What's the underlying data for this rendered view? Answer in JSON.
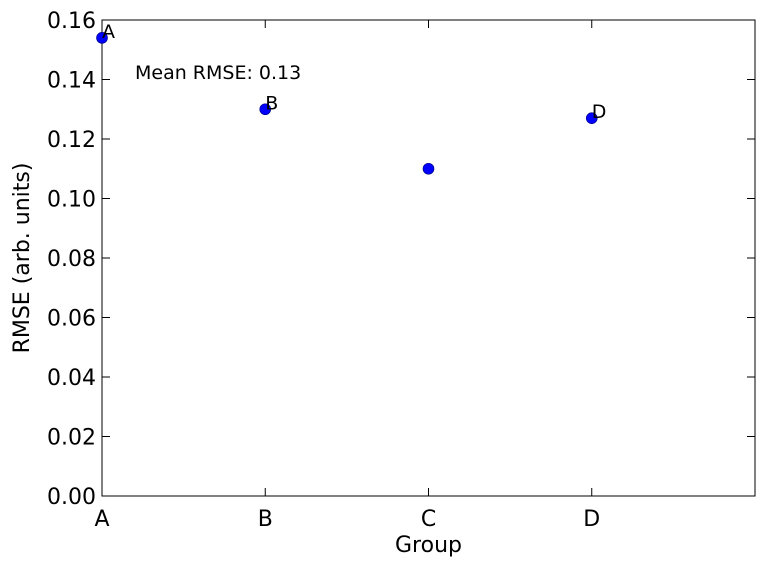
{
  "chart_data": {
    "type": "scatter",
    "title": "",
    "xlabel": "Group",
    "ylabel": "RMSE (arb. units)",
    "categories": [
      "A",
      "B",
      "C",
      "D"
    ],
    "xlim": [
      0,
      4
    ],
    "ylim": [
      0,
      0.16
    ],
    "yticks": [
      "0.00",
      "0.02",
      "0.04",
      "0.06",
      "0.08",
      "0.10",
      "0.12",
      "0.14",
      "0.16"
    ],
    "grid": false,
    "series": [
      {
        "color": "#0000ff",
        "points": [
          {
            "x": "A",
            "y": 0.154,
            "label": "A"
          },
          {
            "x": "B",
            "y": 0.13,
            "label": "B"
          },
          {
            "x": "C",
            "y": 0.11,
            "label": ""
          },
          {
            "x": "D",
            "y": 0.127,
            "label": "D"
          }
        ]
      }
    ],
    "annotation": "Mean RMSE: 0.13"
  }
}
